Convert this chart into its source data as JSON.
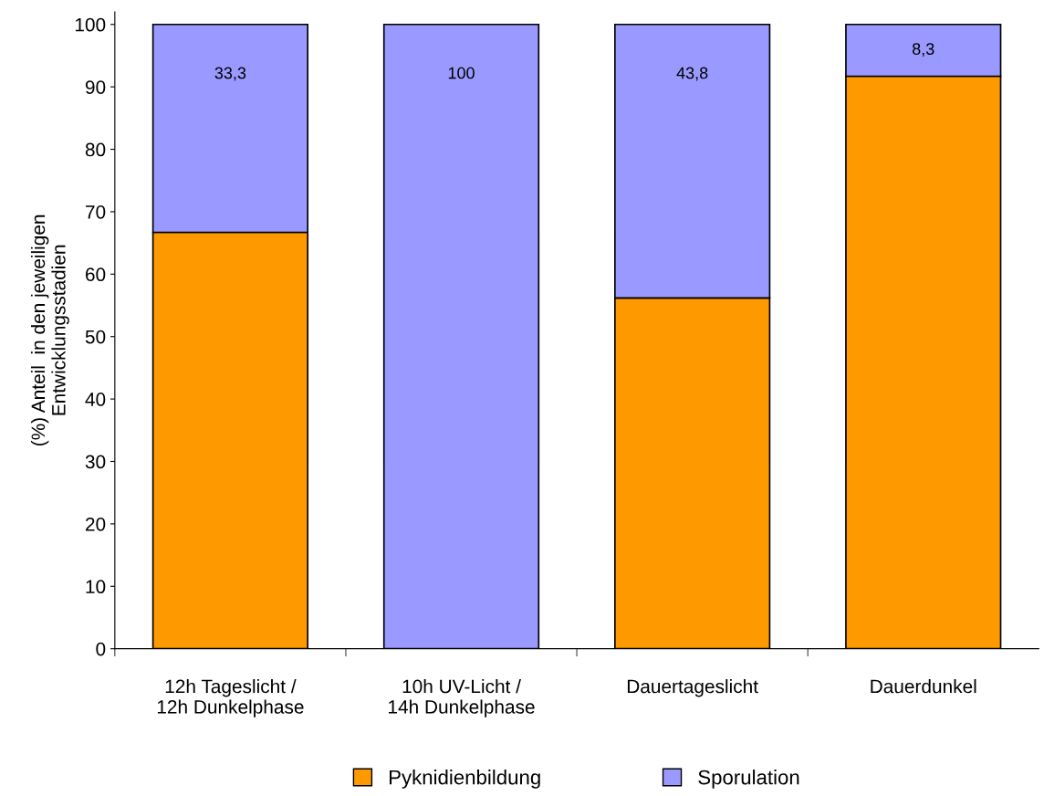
{
  "chart_data": {
    "type": "bar",
    "stacked": true,
    "ylabel": "(%) Anteil  in den jeweiligen\nEntwicklungsstadien",
    "categories": [
      "12h Tageslicht /\n12h Dunkelphase",
      "10h UV-Licht /\n14h Dunkelphase",
      "Dauertageslicht",
      "Dauerdunkel"
    ],
    "series": [
      {
        "name": "Pyknidienbildung",
        "color": "#ff9900",
        "values": [
          66.7,
          0,
          56.2,
          91.7
        ]
      },
      {
        "name": "Sporulation",
        "color": "#9999ff",
        "values": [
          33.3,
          100,
          43.8,
          8.3
        ],
        "value_labels": [
          "33,3",
          "100",
          "43,8",
          "8,3"
        ]
      }
    ],
    "ylim": [
      0,
      102
    ],
    "yticks": [
      0,
      10,
      20,
      30,
      40,
      50,
      60,
      70,
      80,
      90,
      100
    ],
    "grid": false,
    "legend": "bottom"
  }
}
